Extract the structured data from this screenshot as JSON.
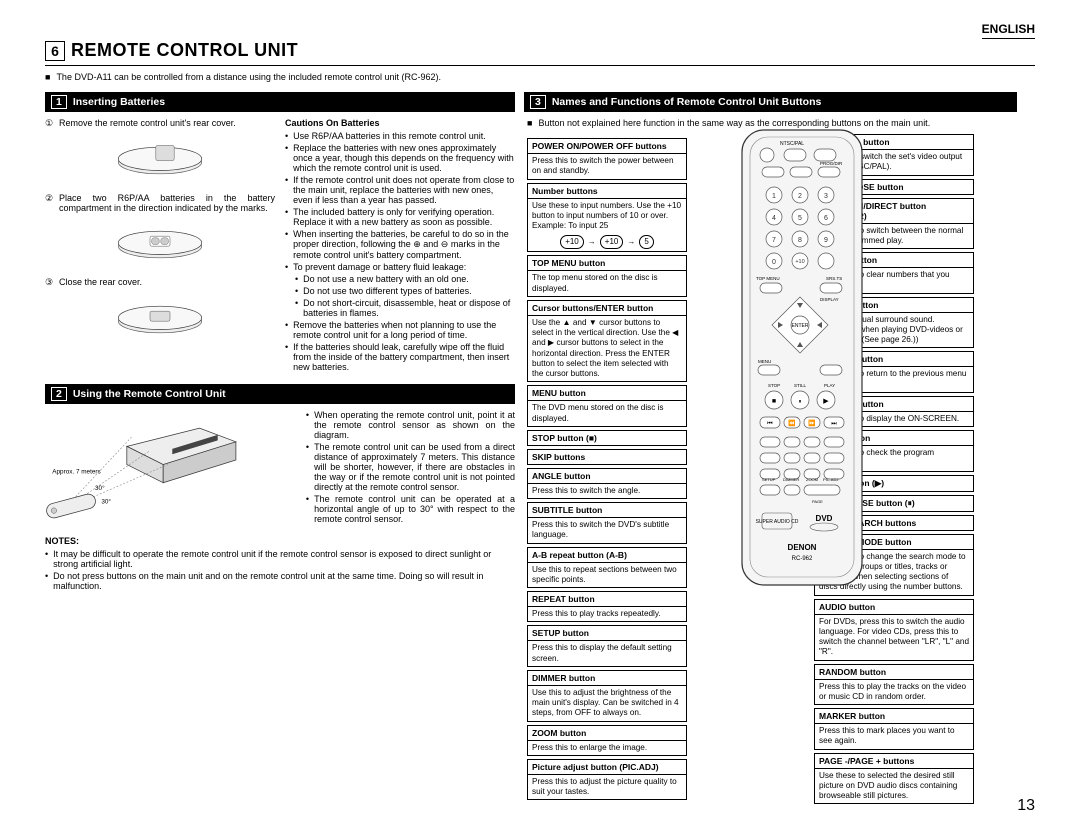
{
  "lang": "ENGLISH",
  "section_num": "6",
  "main_title": "REMOTE CONTROL UNIT",
  "intro": "The DVD-A11 can be controlled from a distance using the included remote control unit (RC-962).",
  "sec1": {
    "num": "1",
    "title": "Inserting Batteries",
    "steps": [
      {
        "n": "①",
        "t": "Remove the remote control unit's rear cover."
      },
      {
        "n": "②",
        "t": "Place two R6P/AA batteries in the battery compartment in the direction indicated by the marks."
      },
      {
        "n": "③",
        "t": "Close the rear cover."
      }
    ],
    "cautions_title": "Cautions On Batteries",
    "cautions": [
      "Use R6P/AA batteries in this remote control unit.",
      "Replace the batteries with new ones approximately once a year, though this depends on the frequency with which the remote control unit is used.",
      "If the remote control unit does not operate from close to the main unit, replace the batteries with new ones, even if less than a year has passed.",
      "The included battery is only for verifying operation. Replace it with a new battery as soon as possible.",
      "When inserting the batteries, be careful to do so in the proper direction, following the ⊕ and ⊖ marks in the remote control unit's battery compartment.",
      "To prevent damage or battery fluid leakage:"
    ],
    "cautions_nested": [
      "Do not use a new battery with an old one.",
      "Do not use two different types of batteries.",
      "Do not short-circuit, disassemble, heat or dispose of batteries in flames."
    ],
    "cautions_after": [
      "Remove the batteries when not planning to use the remote control unit for a long period of time.",
      "If the batteries should leak, carefully wipe off the fluid from the inside of the battery compartment, then insert new batteries."
    ]
  },
  "sec2": {
    "num": "2",
    "title": "Using the Remote Control Unit",
    "approx": "Approx. 7 meters",
    "angle1": "30°",
    "angle2": "30°",
    "ops": [
      "When operating the remote control unit, point it at the remote control sensor as shown on the diagram.",
      "The remote control unit can be used from a direct distance of approximately 7 meters. This distance will be shorter, however, if there are obstacles in the way or if the remote control unit is not pointed directly at the remote control sensor.",
      "The remote control unit can be operated at a horizontal angle of up to 30° with respect to the remote control sensor."
    ],
    "notes_title": "NOTES:",
    "notes": [
      "It may be difficult to operate the remote control unit if the remote control sensor is exposed to direct sunlight or strong artificial light.",
      "Do not press buttons on the main unit and on the remote control unit at the same time. Doing so will result in malfunction."
    ]
  },
  "sec3": {
    "num": "3",
    "title": "Names and Functions of Remote Control Unit Buttons",
    "intro": "Button not explained here function in the same way as the corresponding buttons on the main unit.",
    "seq": [
      "+10",
      "+10",
      "5"
    ],
    "left": [
      {
        "h": "POWER ON/POWER OFF buttons",
        "b": "Press this to switch the power between on and standby."
      },
      {
        "h": "Number buttons",
        "b": "Use these to input numbers.\nUse the +10 button to input numbers of 10 or over.\nExample: To input 25"
      },
      {
        "h": "TOP MENU button",
        "b": "The top menu stored on the disc is displayed."
      },
      {
        "h": "Cursor buttons/ENTER button",
        "b": "Use the ▲ and ▼ cursor buttons to select in the vertical direction.\nUse the ◀ and ▶ cursor buttons to select in the horizontal direction.\nPress the ENTER button to select the item selected with the cursor buttons."
      },
      {
        "h": "MENU button",
        "b": "The DVD menu stored on the disc is displayed."
      },
      {
        "h": "STOP button (■)",
        "b": null
      },
      {
        "h": "SKIP buttons",
        "b": null
      },
      {
        "h": "ANGLE button",
        "b": "Press this to switch the angle."
      },
      {
        "h": "SUBTITLE button",
        "b": "Press this to switch the DVD's subtitle language."
      },
      {
        "h": "A-B repeat button (A-B)",
        "b": "Use this to repeat sections between two specific points."
      },
      {
        "h": "REPEAT button",
        "b": "Press this to play tracks repeatedly."
      },
      {
        "h": "SETUP button",
        "b": "Press this to display the default setting screen."
      },
      {
        "h": "DIMMER button",
        "b": "Use this to adjust the brightness of the main unit's display. Can be switched in 4 steps, from OFF to always on."
      },
      {
        "h": "ZOOM button",
        "b": "Press this to enlarge the image."
      },
      {
        "h": "Picture adjust button (PIC.ADJ)",
        "b": "Press this to adjust the picture quality to suit your tastes."
      }
    ],
    "right": [
      {
        "h": "NTSC/PAL button",
        "b": "Use this to switch the set's video output format (NTSC/PAL)."
      },
      {
        "h": "OPEN/CLOSE button",
        "b": null
      },
      {
        "h": "PROGRAM/DIRECT button (PROG/DIR)",
        "b": "Press this to switch between the normal play, programmed play."
      },
      {
        "h": "CLEAR button",
        "b": "Press this to clear numbers that you have input."
      },
      {
        "h": "SRS.TS button",
        "b": "Sets the virtual surround sound. (Functions when playing DVD-videos or VCDs only. (See page 26.))"
      },
      {
        "h": "RETURN button",
        "b": "Press this to return to the previous menu screen."
      },
      {
        "h": "DISPLAY button",
        "b": "Press this to display the ON-SCREEN."
      },
      {
        "h": "CALL button",
        "b": "Press this to check the program contents."
      },
      {
        "h": "PLAY button (▶)",
        "b": null
      },
      {
        "h": "STILL/PAUSE button (⏸)",
        "b": null
      },
      {
        "h": "SLOW/SEARCH buttons",
        "b": null
      },
      {
        "h": "SEARCH MODE button",
        "b": "Press this to change the search mode to search for groups or titles, tracks or chapters when selecting sections of discs directly using the number buttons."
      },
      {
        "h": "AUDIO button",
        "b": "For DVDs, press this to switch the audio language. For video CDs, press this to switch the channel between \"LR\", \"L\" and \"R\"."
      },
      {
        "h": "RANDOM button",
        "b": "Press this to play the tracks on the video or music CD in random order."
      },
      {
        "h": "MARKER button",
        "b": "Press this to mark places you want to see again."
      },
      {
        "h": "PAGE -/PAGE + buttons",
        "b": "Use these to selected the desired still picture on DVD audio discs containing browseable still pictures."
      }
    ]
  },
  "remote_label": "DENON",
  "remote_model": "RC-962",
  "page": "13"
}
